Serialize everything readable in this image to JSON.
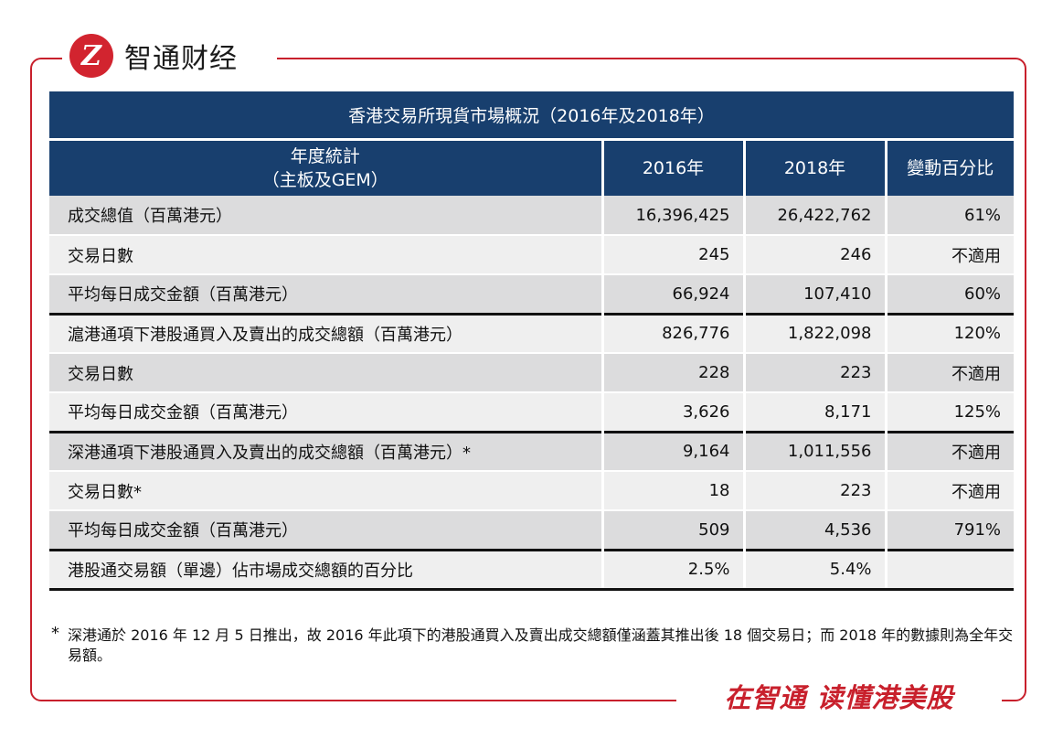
{
  "brand": {
    "logo_glyph": "Z",
    "name": "智通财经",
    "slogan": "在智通  读懂港美股",
    "accent_color": "#c8202c",
    "header_color": "#183f6e"
  },
  "watermark": "智通财经",
  "table": {
    "title": "香港交易所現貨市場概況（2016年及2018年）",
    "header": {
      "col1_line1": "年度統計",
      "col1_line2": "（主板及GEM）",
      "col2": "2016年",
      "col3": "2018年",
      "col4": "變動百分比"
    },
    "rows": [
      {
        "label": "成交總值（百萬港元）",
        "y2016": "16,396,425",
        "y2018": "26,422,762",
        "change": "61%"
      },
      {
        "label": "交易日數",
        "y2016": "245",
        "y2018": "246",
        "change": "不適用"
      },
      {
        "label": "平均每日成交金額（百萬港元）",
        "y2016": "66,924",
        "y2018": "107,410",
        "change": "60%"
      },
      {
        "label": "滬港通項下港股通買入及賣出的成交總額（百萬港元）",
        "y2016": "826,776",
        "y2018": "1,822,098",
        "change": "120%"
      },
      {
        "label": "交易日數",
        "y2016": "228",
        "y2018": "223",
        "change": "不適用"
      },
      {
        "label": "平均每日成交金額（百萬港元）",
        "y2016": "3,626",
        "y2018": "8,171",
        "change": "125%"
      },
      {
        "label": "深港通項下港股通買入及賣出的成交總額（百萬港元）*",
        "y2016": "9,164",
        "y2018": "1,011,556",
        "change": "不適用"
      },
      {
        "label": "交易日數*",
        "y2016": "18",
        "y2018": "223",
        "change": "不適用"
      },
      {
        "label": "平均每日成交金額（百萬港元）",
        "y2016": "509",
        "y2018": "4,536",
        "change": "791%"
      },
      {
        "label": "港股通交易額（單邊）佔市場成交總額的百分比",
        "y2016": "2.5%",
        "y2018": "5.4%",
        "change": ""
      }
    ]
  },
  "footnote": {
    "marker": "*",
    "text": "深港通於 2016 年 12 月 5 日推出，故 2016 年此項下的港股通買入及賣出成交總額僅涵蓋其推出後 18 個交易日；而 2018 年的數據則為全年交易額。"
  }
}
